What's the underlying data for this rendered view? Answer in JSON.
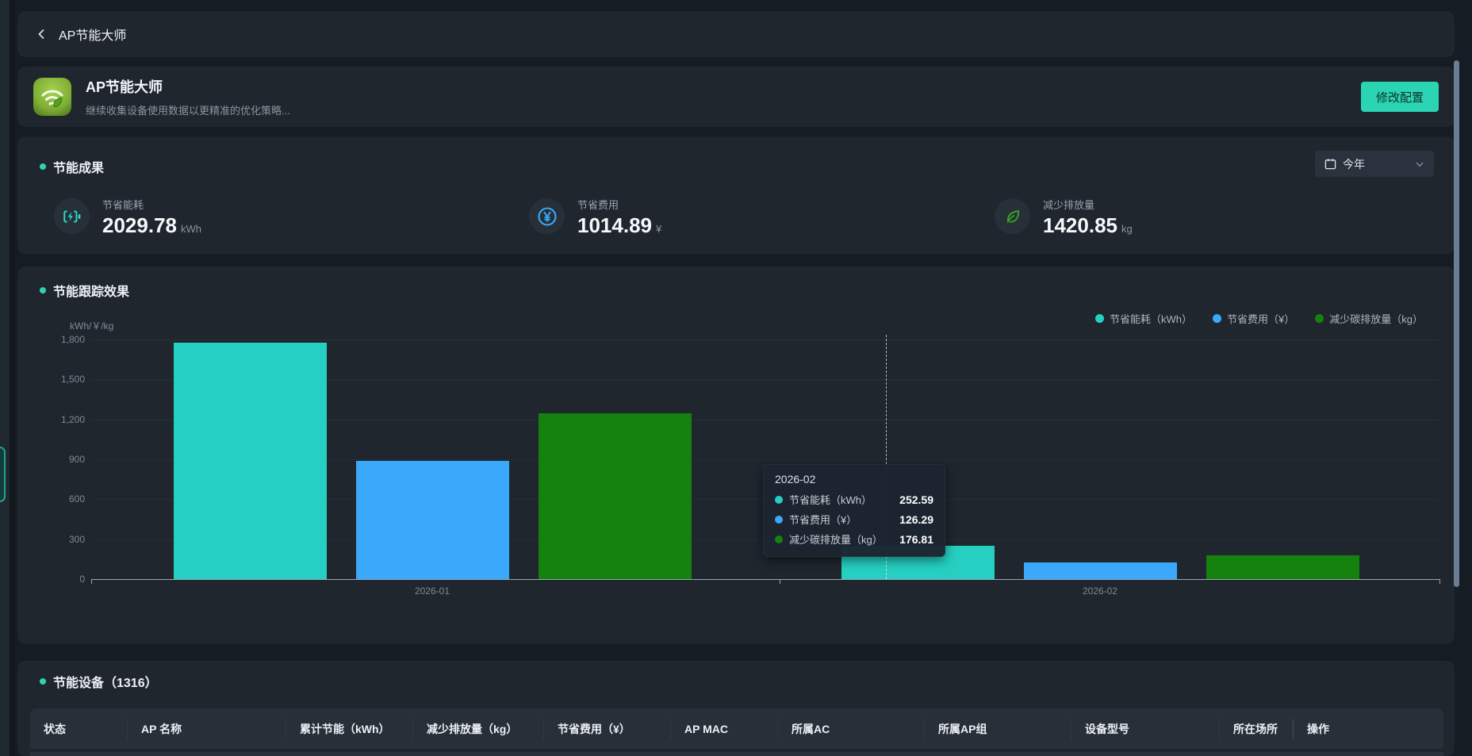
{
  "topbar": {
    "title": "AP节能大师"
  },
  "header": {
    "app_title": "AP节能大师",
    "app_subtitle": "继续收集设备使用数据以更精准的优化策略...",
    "configure_button": "修改配置"
  },
  "savings": {
    "section_title": "节能成果",
    "period_filter": {
      "value": "今年"
    },
    "stats": [
      {
        "icon": "battery-charging-icon",
        "label": "节省能耗",
        "value": "2029.78",
        "unit": "kWh",
        "color": "#2bd6c3"
      },
      {
        "icon": "yen-circle-icon",
        "label": "节省费用",
        "value": "1014.89",
        "unit": "¥",
        "color": "#3aa9fb"
      },
      {
        "icon": "leaf-icon",
        "label": "减少排放量",
        "value": "1420.85",
        "unit": "kg",
        "color": "#35a325"
      }
    ]
  },
  "chart_data": {
    "type": "bar",
    "title": "节能跟踪效果",
    "y_axis_label": "kWh/￥/kg",
    "ylim": [
      0,
      1800
    ],
    "y_ticks": [
      "0",
      "300",
      "600",
      "900",
      "1,200",
      "1,500",
      "1,800"
    ],
    "grid": true,
    "legend_position": "top-right",
    "categories": [
      "2026-01",
      "2026-02"
    ],
    "series": [
      {
        "name": "节省能耗（kWh）",
        "color": "#25d0c2",
        "values": [
          1777.19,
          252.59
        ]
      },
      {
        "name": "节省费用（¥）",
        "color": "#3aa9fb",
        "values": [
          888.6,
          126.29
        ]
      },
      {
        "name": "减少碳排放量（kg）",
        "color": "#15810f",
        "values": [
          1244.04,
          176.81
        ]
      }
    ],
    "tooltip": {
      "title": "2026-02",
      "rows": [
        {
          "name": "节省能耗（kWh）",
          "value": "252.59",
          "color": "#25d0c2"
        },
        {
          "name": "节省费用（¥）",
          "value": "126.29",
          "color": "#3aa9fb"
        },
        {
          "name": "减少碳排放量（kg）",
          "value": "176.81",
          "color": "#15810f"
        }
      ]
    }
  },
  "devices": {
    "section_title": "节能设备（1316）",
    "count": "1316",
    "columns": [
      "状态",
      "AP 名称",
      "累计节能（kWh）",
      "减少排放量（kg）",
      "节省费用（¥）",
      "AP MAC",
      "所属AC",
      "所属AP组",
      "设备型号",
      "所在场所",
      "操作"
    ]
  }
}
